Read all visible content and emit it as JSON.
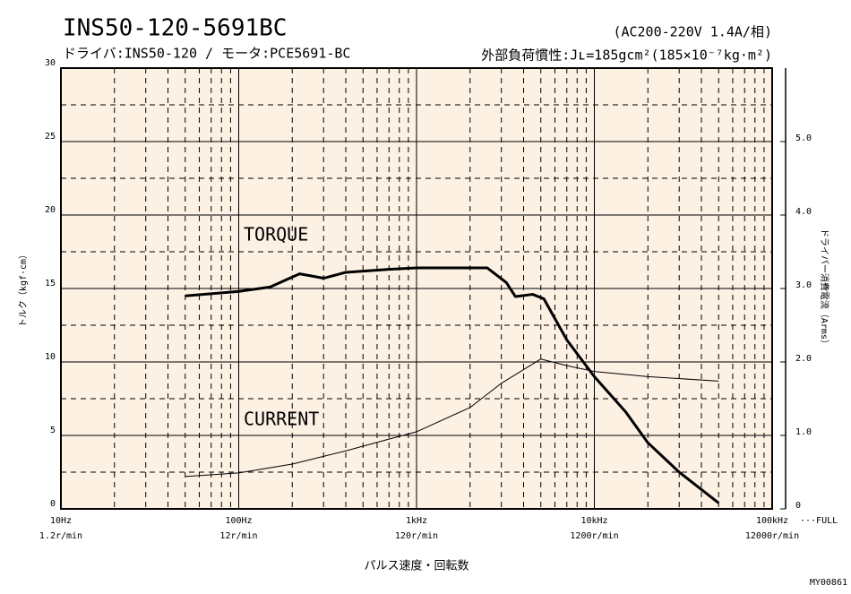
{
  "chart_data": {
    "type": "line",
    "title": "INS50-120-5691BC",
    "subtitle": "ドライバ:INS50-120 / モータ:PCE5691-BC",
    "condition": "(AC200-220V  1.4A/相)",
    "inertia": "外部負荷慣性:Jʟ=185gcm²(185×10⁻⁷kg·m²)",
    "ylabel": "トルク（kgf·cm）",
    "y2label": "ドライバー消費電流（Arms）",
    "xlabel": "パルス速度・回転数",
    "code": "MY00861",
    "full_label": "···FULL",
    "annotations": [
      "TORQUE",
      "CURRENT"
    ],
    "xscale": "log",
    "xlim": [
      10,
      100000
    ],
    "xticks": [
      {
        "value": 10,
        "label": "10Hz"
      },
      {
        "value": 100,
        "label": "100Hz"
      },
      {
        "value": 1000,
        "label": "1kHz"
      },
      {
        "value": 10000,
        "label": "10kHz"
      },
      {
        "value": 100000,
        "label": "100kHz"
      }
    ],
    "rpm_labels": [
      "1.2r/min",
      "12r/min",
      "120r/min",
      "1200r/min",
      "12000r/min"
    ],
    "xminor": [
      20,
      30,
      40,
      50,
      60,
      70,
      80,
      90,
      200,
      300,
      400,
      500,
      600,
      700,
      800,
      900,
      2000,
      3000,
      4000,
      5000,
      6000,
      7000,
      8000,
      9000,
      20000,
      30000,
      40000,
      50000,
      60000,
      70000,
      80000,
      90000
    ],
    "ylim": [
      0,
      30
    ],
    "yticks": [
      0,
      5,
      10,
      15,
      20,
      25,
      30
    ],
    "yminor": [
      2.5,
      7.5,
      12.5,
      17.5,
      22.5,
      27.5
    ],
    "y2lim": [
      0,
      6
    ],
    "y2ticks": [
      0,
      {
        "value": 1,
        "label": "1.0"
      },
      {
        "value": 2,
        "label": "2.0"
      },
      {
        "value": 3,
        "label": "3.0"
      },
      {
        "value": 4,
        "label": "4.0"
      },
      {
        "value": 5,
        "label": "5.0"
      }
    ],
    "grid": true,
    "series": [
      {
        "name": "TORQUE",
        "color": "#000000",
        "x": [
          50,
          100,
          150,
          220,
          300,
          400,
          700,
          1000,
          2000,
          2500,
          3200,
          3600,
          4500,
          5200,
          7000,
          10000,
          15000,
          20000,
          30000,
          50000
        ],
        "values": [
          14.5,
          14.8,
          15.1,
          16.0,
          15.7,
          16.1,
          16.3,
          16.4,
          16.4,
          16.4,
          15.4,
          14.45,
          14.6,
          14.3,
          11.5,
          9.0,
          6.6,
          4.5,
          2.5,
          0.4
        ]
      },
      {
        "name": "CURRENT",
        "color": "#000000",
        "axis": "y2",
        "x": [
          50,
          100,
          200,
          400,
          700,
          1000,
          2000,
          3000,
          5000,
          7000,
          10000,
          20000,
          50000
        ],
        "values": [
          0.44,
          0.49,
          0.61,
          0.79,
          0.95,
          1.05,
          1.38,
          1.71,
          2.04,
          1.95,
          1.87,
          1.8,
          1.74
        ]
      }
    ]
  }
}
